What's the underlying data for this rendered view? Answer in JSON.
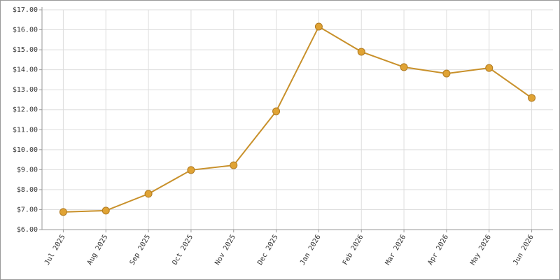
{
  "chart_data": {
    "type": "line",
    "categories": [
      "Jul 2025",
      "Aug 2025",
      "Sep 2025",
      "Oct 2025",
      "Nov 2025",
      "Dec 2025",
      "Jan 2026",
      "Feb 2026",
      "Mar 2026",
      "Apr 2026",
      "May 2026",
      "Jun 2026"
    ],
    "values": [
      6.88,
      6.95,
      7.79,
      8.98,
      9.22,
      11.92,
      16.16,
      14.9,
      14.13,
      13.81,
      14.09,
      12.59
    ],
    "color": "#c8902a",
    "marker_color": "#e0a334",
    "ylim": [
      6,
      17
    ],
    "yticks": [
      {
        "value": 6,
        "label": "$6.00"
      },
      {
        "value": 7,
        "label": "$7.00"
      },
      {
        "value": 8,
        "label": "$8.00"
      },
      {
        "value": 9,
        "label": "$9.00"
      },
      {
        "value": 10,
        "label": "$10.00"
      },
      {
        "value": 11,
        "label": "$11.00"
      },
      {
        "value": 12,
        "label": "$12.00"
      },
      {
        "value": 13,
        "label": "$13.00"
      },
      {
        "value": 14,
        "label": "$14.00"
      },
      {
        "value": 15,
        "label": "$15.00"
      },
      {
        "value": 16,
        "label": "$16.00"
      },
      {
        "value": 17,
        "label": "$17.00"
      }
    ],
    "grid": true
  }
}
